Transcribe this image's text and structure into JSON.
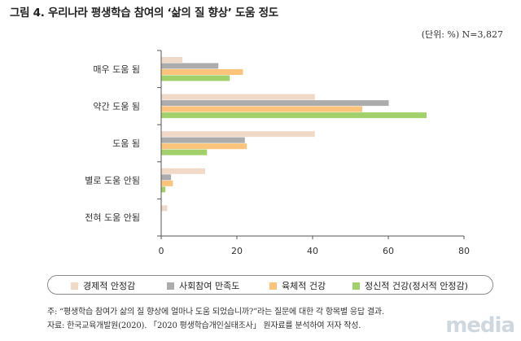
{
  "title": "그림 4. 우리나라 평생학습 참여의 ‘삶의 질 향상’ 도움 정도",
  "unit_note": "(단위: %) N=3,827",
  "chart_data": {
    "type": "bar",
    "orientation": "horizontal",
    "title": "그림 4. 우리나라 평생학습 참여의 ‘삶의 질 향상’ 도움 정도",
    "categories": [
      "매우 도움 됨",
      "약간 도움 됨",
      "도움 됨",
      "별로 도움 안됨",
      "전혀 도움 안됨"
    ],
    "series": [
      {
        "name": "경제적 안정감",
        "color": "#f0d9c7",
        "values": [
          5.5,
          40.5,
          40.5,
          11.5,
          1.5
        ]
      },
      {
        "name": "사회참여 만족도",
        "color": "#acacac",
        "values": [
          15,
          60,
          22,
          2.5,
          0
        ]
      },
      {
        "name": "육체적 건강",
        "color": "#fbc47a",
        "values": [
          21.5,
          53,
          22.5,
          3,
          0
        ]
      },
      {
        "name": "정신적 건강(정서적 안정감)",
        "color": "#a2d16c",
        "values": [
          18,
          70,
          12,
          1,
          0
        ]
      }
    ],
    "xlim": [
      0,
      80
    ],
    "x_ticks": [
      0,
      20,
      40,
      60,
      80
    ],
    "grid": false,
    "legend": "bottom"
  },
  "notes": {
    "line1": "주: “평생학습 참여가 삶의 질 향상에 얼마나 도움 되었습니까?”라는 질문에 대한 각 항목별 응답 결과.",
    "line2": "자료: 한국교육개발원(2020). 「2020 평생학습개인실태조사」 원자료를 분석하여 저자 작성."
  },
  "watermark": "media"
}
